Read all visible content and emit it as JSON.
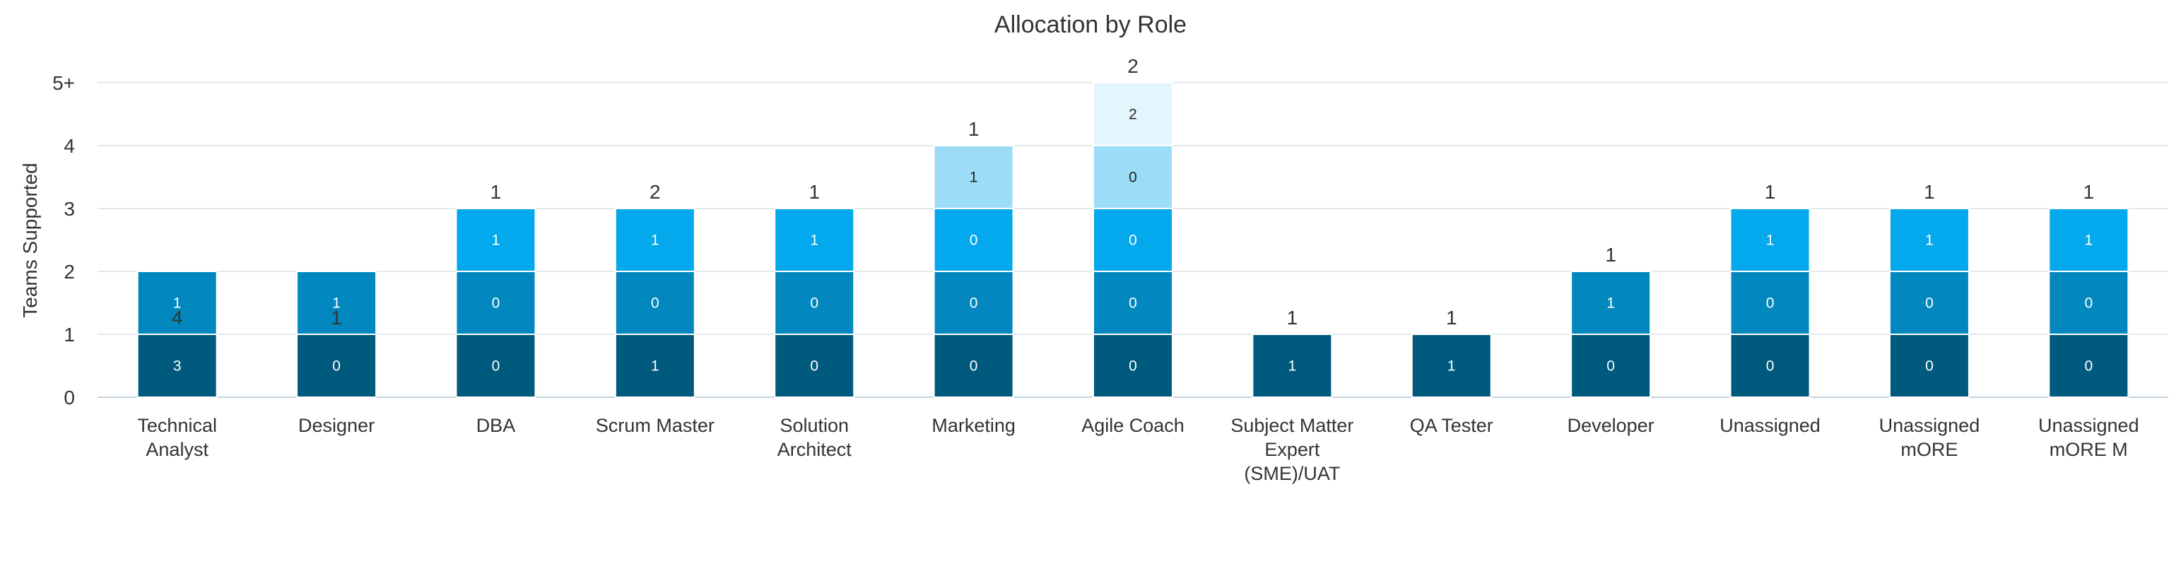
{
  "chart_data": {
    "type": "bar",
    "stacked": true,
    "title": "Allocation by Role",
    "ylabel": "Teams Supported",
    "y_ticks": [
      "0",
      "1",
      "2",
      "3",
      "4",
      "5+"
    ],
    "ylim": [
      0,
      5
    ],
    "categories": [
      "Technical Analyst",
      "Designer",
      "DBA",
      "Scrum Master",
      "Solution Architect",
      "Marketing",
      "Agile Coach",
      "Subject Matter Expert (SME)/UAT",
      "QA Tester",
      "Developer",
      "Unassigned",
      "Unassigned mORE",
      "Unassigned mORE M"
    ],
    "category_lines": [
      [
        "Technical",
        "Analyst"
      ],
      [
        "Designer"
      ],
      [
        "DBA"
      ],
      [
        "Scrum Master"
      ],
      [
        "Solution",
        "Architect"
      ],
      [
        "Marketing"
      ],
      [
        "Agile Coach"
      ],
      [
        "Subject Matter",
        "Expert",
        "(SME)/UAT"
      ],
      [
        "QA Tester"
      ],
      [
        "Developer"
      ],
      [
        "Unassigned"
      ],
      [
        "Unassigned",
        "mORE"
      ],
      [
        "Unassigned",
        "mORE M"
      ]
    ],
    "levels": [
      1,
      1,
      3,
      3,
      3,
      4,
      5,
      1,
      1,
      2,
      3,
      3,
      3
    ],
    "totals": [
      4,
      1,
      1,
      2,
      1,
      1,
      2,
      1,
      1,
      1,
      1,
      1,
      1
    ],
    "series": [
      {
        "color": "#005a7d",
        "values": [
          3,
          0,
          0,
          1,
          0,
          0,
          0,
          1,
          1,
          0,
          0,
          0,
          0
        ]
      },
      {
        "color": "#0288bf",
        "values": [
          1,
          1,
          0,
          0,
          0,
          0,
          0,
          null,
          null,
          1,
          0,
          0,
          0
        ]
      },
      {
        "color": "#03a9ec",
        "values": [
          null,
          null,
          1,
          1,
          1,
          0,
          0,
          null,
          null,
          null,
          1,
          1,
          1
        ]
      },
      {
        "color": "#9cdcf7",
        "values": [
          null,
          null,
          null,
          null,
          null,
          1,
          0,
          null,
          null,
          null,
          null,
          null,
          null
        ]
      },
      {
        "color": "#e3f5fd",
        "values": [
          null,
          null,
          null,
          null,
          null,
          null,
          2,
          null,
          null,
          null,
          null,
          null,
          null
        ]
      }
    ],
    "grid": true,
    "legend": "none"
  }
}
